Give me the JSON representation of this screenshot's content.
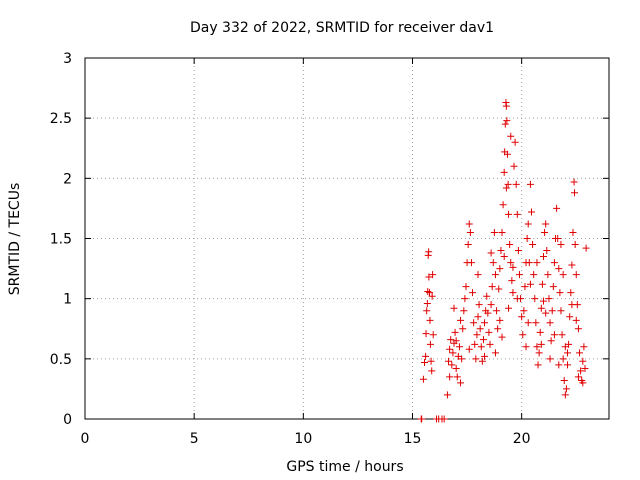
{
  "chart_data": {
    "type": "scatter",
    "title": "Day 332 of 2022, SRMTID for receiver dav1",
    "xlabel": "GPS time / hours",
    "ylabel": "SRMTID / TECUs",
    "xlim": [
      0,
      24
    ],
    "ylim": [
      0,
      3
    ],
    "xticks": [
      0,
      5,
      10,
      15,
      20
    ],
    "xtick_labels": [
      "0",
      "5",
      "10",
      "15",
      "20"
    ],
    "yticks": [
      0,
      0.5,
      1,
      1.5,
      2,
      2.5,
      3
    ],
    "ytick_labels": [
      "0",
      "0.5",
      "1",
      "1.5",
      "2",
      "2.5",
      "3"
    ],
    "grid": true,
    "marker": "+",
    "color": "#e00000",
    "series": [
      {
        "name": "dav1",
        "points": [
          [
            15.4,
            0.0
          ],
          [
            15.42,
            0.0
          ],
          [
            16.1,
            0.0
          ],
          [
            16.2,
            0.0
          ],
          [
            16.35,
            0.0
          ],
          [
            16.45,
            0.0
          ],
          [
            15.5,
            0.33
          ],
          [
            15.55,
            0.47
          ],
          [
            15.6,
            0.52
          ],
          [
            15.62,
            0.71
          ],
          [
            15.65,
            0.9
          ],
          [
            15.68,
            0.96
          ],
          [
            15.7,
            1.06
          ],
          [
            15.72,
            1.36
          ],
          [
            15.74,
            1.39
          ],
          [
            15.75,
            1.18
          ],
          [
            15.78,
            1.05
          ],
          [
            15.8,
            0.82
          ],
          [
            15.82,
            0.62
          ],
          [
            15.85,
            0.48
          ],
          [
            15.88,
            0.4
          ],
          [
            15.9,
            1.02
          ],
          [
            15.92,
            1.2
          ],
          [
            15.95,
            0.7
          ],
          [
            16.6,
            0.2
          ],
          [
            16.65,
            0.48
          ],
          [
            16.7,
            0.58
          ],
          [
            16.75,
            0.66
          ],
          [
            16.8,
            0.45
          ],
          [
            16.85,
            0.55
          ],
          [
            16.9,
            0.63
          ],
          [
            16.95,
            0.72
          ],
          [
            17.0,
            0.42
          ],
          [
            17.05,
            0.35
          ],
          [
            17.1,
            0.52
          ],
          [
            17.15,
            0.6
          ],
          [
            17.2,
            0.3
          ],
          [
            17.25,
            0.5
          ],
          [
            17.3,
            0.75
          ],
          [
            17.35,
            0.9
          ],
          [
            17.4,
            1.0
          ],
          [
            17.45,
            1.1
          ],
          [
            17.5,
            1.3
          ],
          [
            17.55,
            1.45
          ],
          [
            17.6,
            1.62
          ],
          [
            17.65,
            1.55
          ],
          [
            17.7,
            1.3
          ],
          [
            17.75,
            1.05
          ],
          [
            17.8,
            0.8
          ],
          [
            17.85,
            0.62
          ],
          [
            17.9,
            0.5
          ],
          [
            17.95,
            0.7
          ],
          [
            18.0,
            0.85
          ],
          [
            18.05,
            0.95
          ],
          [
            18.1,
            0.75
          ],
          [
            18.15,
            0.6
          ],
          [
            18.2,
            0.48
          ],
          [
            18.25,
            0.66
          ],
          [
            18.3,
            0.8
          ],
          [
            18.35,
            0.9
          ],
          [
            18.4,
            1.02
          ],
          [
            18.45,
            0.88
          ],
          [
            18.5,
            0.72
          ],
          [
            18.55,
            0.62
          ],
          [
            18.6,
            0.95
          ],
          [
            18.65,
            1.1
          ],
          [
            18.7,
            1.3
          ],
          [
            18.75,
            1.55
          ],
          [
            18.8,
            1.2
          ],
          [
            18.85,
            0.9
          ],
          [
            18.9,
            0.75
          ],
          [
            18.95,
            1.08
          ],
          [
            19.0,
            1.25
          ],
          [
            19.05,
            1.4
          ],
          [
            19.1,
            1.55
          ],
          [
            19.15,
            1.78
          ],
          [
            19.2,
            2.05
          ],
          [
            19.22,
            2.22
          ],
          [
            19.25,
            2.45
          ],
          [
            19.28,
            2.63
          ],
          [
            19.3,
            2.6
          ],
          [
            19.32,
            2.48
          ],
          [
            19.35,
            2.2
          ],
          [
            19.38,
            1.95
          ],
          [
            19.4,
            1.7
          ],
          [
            19.45,
            1.45
          ],
          [
            19.5,
            1.3
          ],
          [
            19.55,
            1.15
          ],
          [
            19.6,
            1.05
          ],
          [
            19.65,
            2.1
          ],
          [
            19.7,
            2.3
          ],
          [
            19.75,
            1.95
          ],
          [
            19.8,
            1.7
          ],
          [
            19.85,
            1.4
          ],
          [
            19.9,
            1.2
          ],
          [
            19.95,
            1.0
          ],
          [
            20.0,
            0.85
          ],
          [
            20.05,
            0.7
          ],
          [
            20.1,
            0.9
          ],
          [
            20.15,
            1.1
          ],
          [
            20.2,
            1.3
          ],
          [
            20.25,
            1.5
          ],
          [
            20.3,
            1.62
          ],
          [
            20.35,
            1.3
          ],
          [
            20.4,
            1.95
          ],
          [
            20.45,
            1.72
          ],
          [
            20.5,
            1.45
          ],
          [
            20.55,
            1.2
          ],
          [
            20.6,
            1.0
          ],
          [
            20.65,
            0.8
          ],
          [
            20.7,
            0.6
          ],
          [
            20.75,
            0.45
          ],
          [
            20.8,
            0.55
          ],
          [
            20.85,
            0.72
          ],
          [
            20.9,
            0.92
          ],
          [
            20.95,
            1.12
          ],
          [
            21.0,
            1.35
          ],
          [
            21.05,
            1.55
          ],
          [
            21.1,
            1.62
          ],
          [
            21.15,
            1.4
          ],
          [
            21.2,
            1.2
          ],
          [
            21.25,
            1.0
          ],
          [
            21.3,
            0.8
          ],
          [
            21.35,
            0.65
          ],
          [
            21.4,
            0.9
          ],
          [
            21.45,
            1.1
          ],
          [
            21.5,
            1.3
          ],
          [
            21.55,
            1.5
          ],
          [
            21.6,
            1.75
          ],
          [
            21.65,
            1.5
          ],
          [
            21.7,
            1.25
          ],
          [
            21.75,
            1.05
          ],
          [
            21.8,
            0.9
          ],
          [
            21.85,
            0.7
          ],
          [
            21.9,
            0.5
          ],
          [
            21.95,
            0.32
          ],
          [
            22.0,
            0.2
          ],
          [
            22.05,
            0.25
          ],
          [
            22.1,
            0.45
          ],
          [
            22.15,
            0.62
          ],
          [
            22.2,
            0.85
          ],
          [
            22.25,
            1.05
          ],
          [
            22.3,
            1.28
          ],
          [
            22.35,
            1.55
          ],
          [
            22.4,
            1.97
          ],
          [
            22.42,
            1.88
          ],
          [
            22.45,
            1.45
          ],
          [
            22.5,
            1.2
          ],
          [
            22.55,
            0.95
          ],
          [
            22.6,
            0.75
          ],
          [
            22.65,
            0.55
          ],
          [
            22.7,
            0.4
          ],
          [
            22.75,
            0.32
          ],
          [
            22.8,
            0.48
          ],
          [
            22.85,
            0.6
          ],
          [
            22.9,
            0.42
          ],
          [
            22.95,
            1.42
          ],
          [
            17.6,
            0.58
          ],
          [
            18.3,
            0.52
          ],
          [
            19.1,
            0.68
          ],
          [
            19.4,
            0.92
          ],
          [
            20.2,
            0.6
          ],
          [
            20.9,
            0.62
          ],
          [
            21.3,
            0.5
          ],
          [
            21.7,
            0.45
          ],
          [
            22.1,
            0.55
          ],
          [
            22.6,
            0.35
          ],
          [
            22.8,
            0.3
          ],
          [
            18.0,
            1.2
          ],
          [
            18.6,
            1.38
          ],
          [
            19.0,
            0.82
          ],
          [
            19.6,
            1.26
          ],
          [
            20.4,
            1.12
          ],
          [
            21.0,
            0.98
          ],
          [
            21.9,
            1.2
          ],
          [
            22.3,
            0.95
          ],
          [
            17.2,
            0.82
          ],
          [
            16.9,
            0.92
          ],
          [
            16.7,
            0.35
          ],
          [
            17.0,
            0.65
          ],
          [
            19.3,
            1.92
          ],
          [
            19.5,
            2.35
          ],
          [
            19.8,
            1.0
          ],
          [
            20.7,
            1.3
          ],
          [
            21.5,
            0.7
          ],
          [
            22.0,
            0.6
          ],
          [
            18.8,
            0.55
          ],
          [
            19.2,
            1.35
          ],
          [
            20.3,
            0.8
          ],
          [
            21.1,
            0.88
          ],
          [
            21.8,
            1.45
          ],
          [
            22.5,
            0.82
          ]
        ]
      }
    ]
  }
}
